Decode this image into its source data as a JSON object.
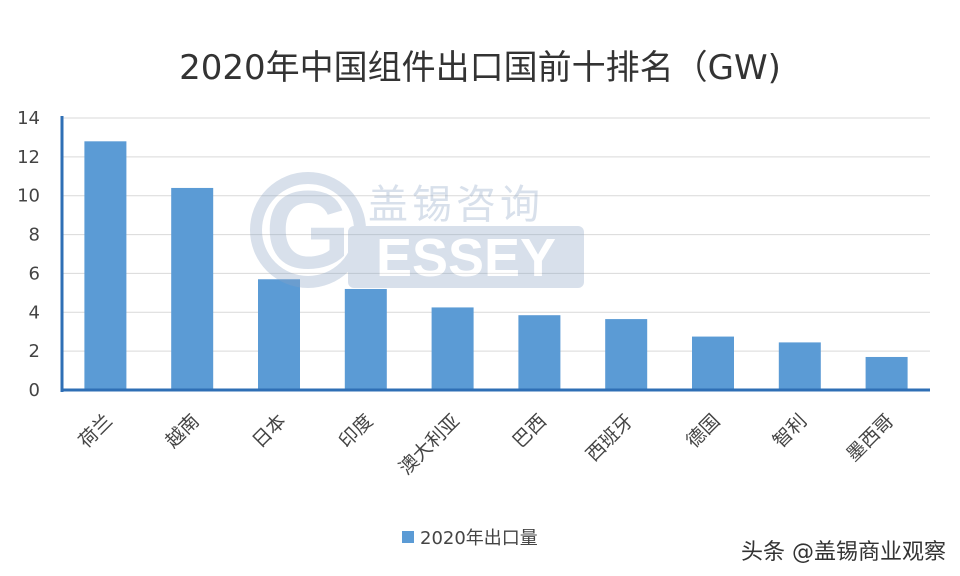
{
  "chart_data": {
    "type": "bar",
    "title": "2020年中国组件出口国前十排名（GW)",
    "categories": [
      "荷兰",
      "越南",
      "日本",
      "印度",
      "澳大利亚",
      "巴西",
      "西班牙",
      "德国",
      "智利",
      "墨西哥"
    ],
    "series": [
      {
        "name": "2020年出口量",
        "values": [
          12.8,
          10.4,
          5.7,
          5.2,
          4.25,
          3.85,
          3.65,
          2.75,
          2.45,
          1.7
        ]
      }
    ],
    "ylim": [
      0,
      14
    ],
    "yticks": [
      0,
      2,
      4,
      6,
      8,
      10,
      12,
      14
    ],
    "grid": true,
    "legend": "bottom",
    "bar_color": "#5b9bd5",
    "axis_color": "#2f6fb5"
  },
  "watermark": {
    "text": "盖锡咨询",
    "logo_letter": "G",
    "logo_word": "ESSEY"
  },
  "credit": "头条 @盖锡商业观察"
}
